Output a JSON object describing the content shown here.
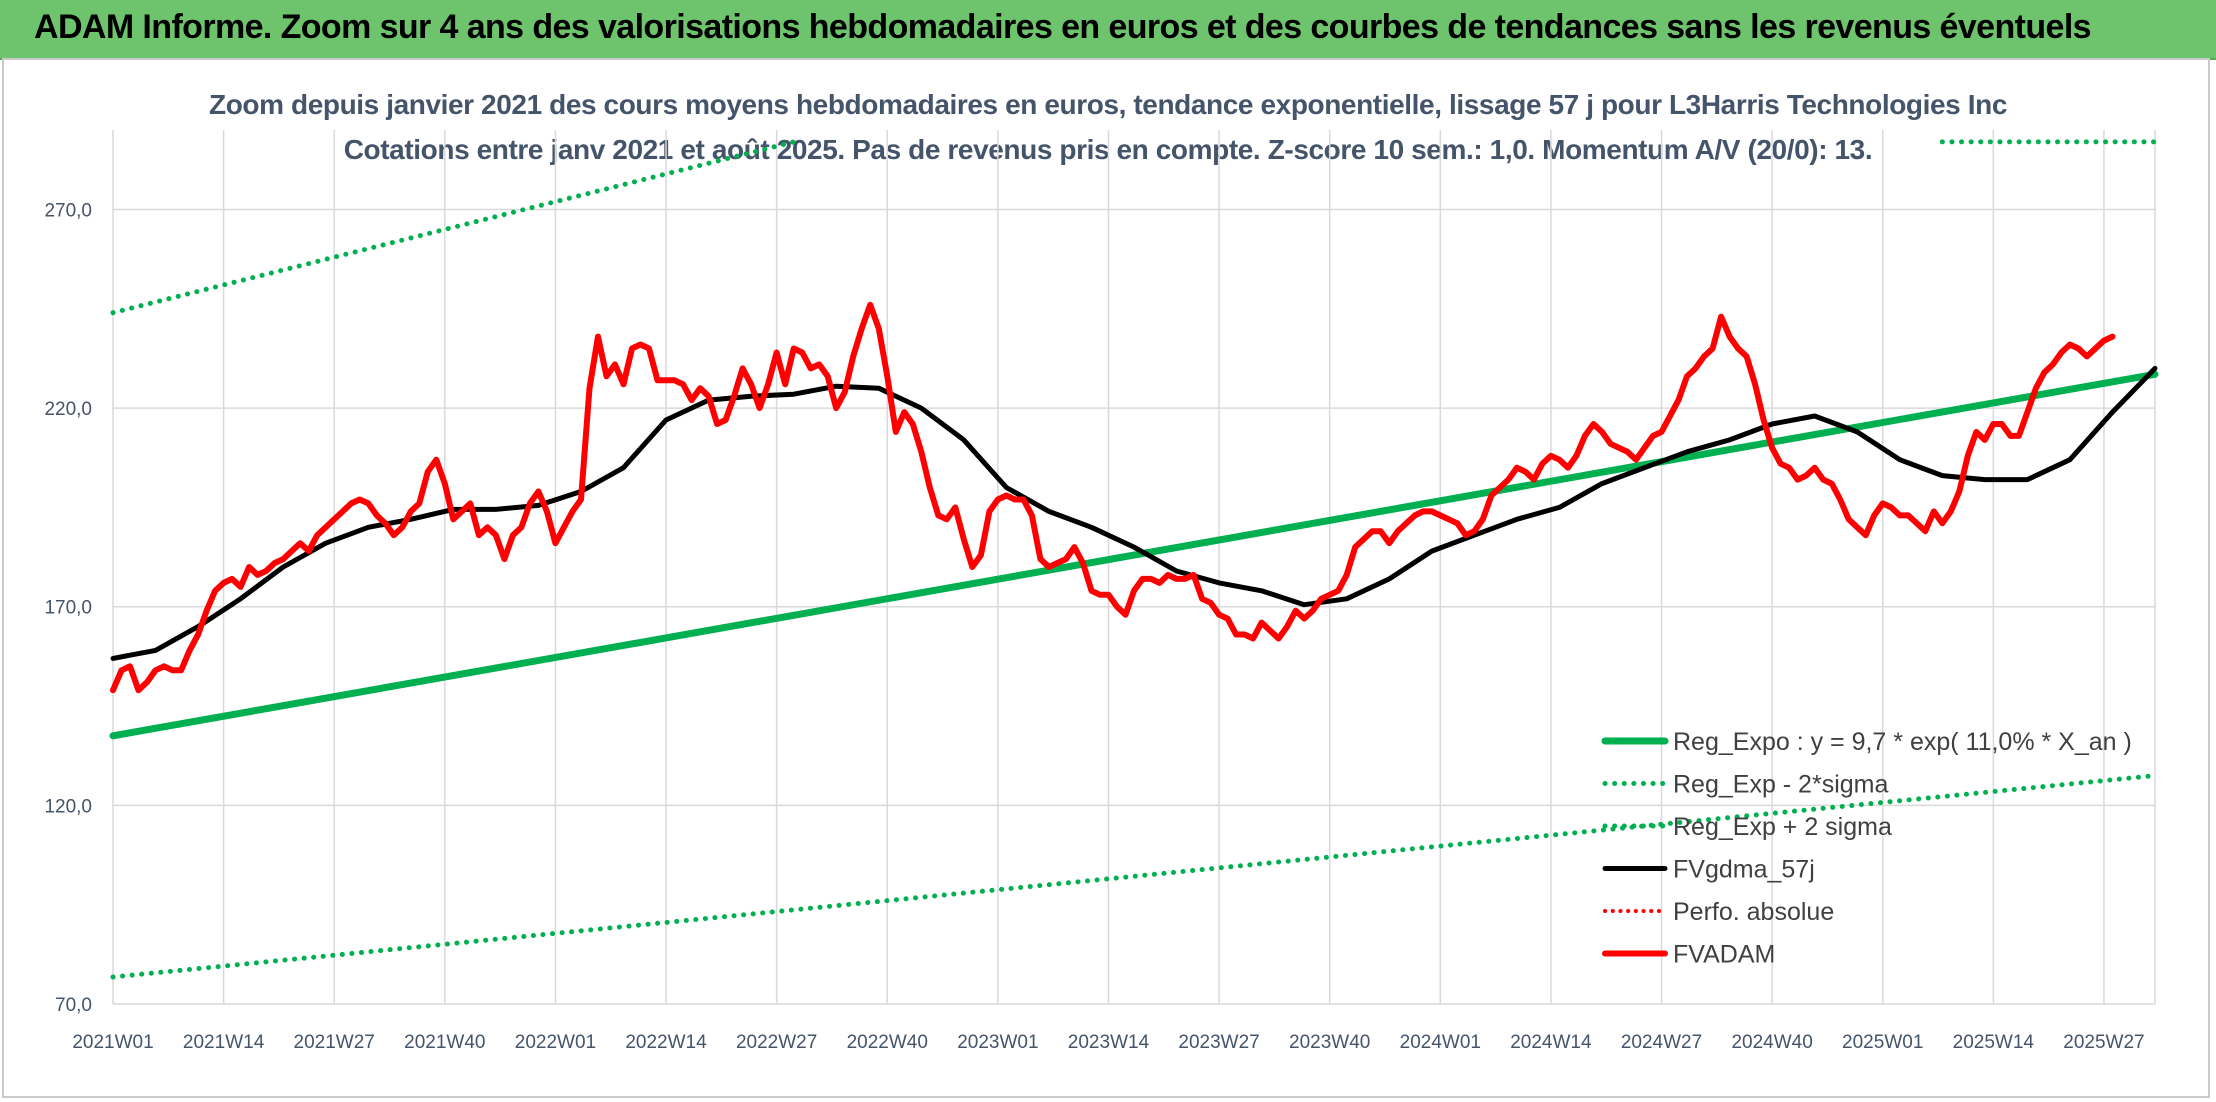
{
  "header": {
    "title": "ADAM Informe. Zoom sur 4 ans des valorisations hebdomadaires en euros et des courbes de tendances sans les revenus éventuels"
  },
  "chart_data": {
    "type": "line",
    "title_line1": "Zoom depuis janvier 2021 des cours moyens hebdomadaires en euros, tendance exponentielle, lissage 57 j pour L3Harris Technologies Inc",
    "title_line2": "Cotations entre janv 2021 et août 2025. Pas de revenus pris en compte. Z-score 10 sem.: 1,0. Momentum A/V (20/0): 13.",
    "xlabel": "",
    "ylabel": "",
    "ylim": [
      70,
      290
    ],
    "yticks": [
      "70,0",
      "120,0",
      "170,0",
      "220,0",
      "270,0"
    ],
    "ytick_values": [
      70,
      120,
      170,
      220,
      270
    ],
    "x_weeks": 240,
    "xticks": [
      "2021W01",
      "2021W14",
      "2021W27",
      "2021W40",
      "2022W01",
      "2022W14",
      "2022W27",
      "2022W40",
      "2023W01",
      "2023W14",
      "2023W27",
      "2023W40",
      "2024W01",
      "2024W14",
      "2024W27",
      "2024W40",
      "2025W01",
      "2025W14",
      "2025W27"
    ],
    "xtick_index": [
      0,
      13,
      26,
      39,
      52,
      65,
      78,
      91,
      104,
      117,
      130,
      143,
      156,
      169,
      182,
      195,
      208,
      221,
      234
    ],
    "grid": true,
    "legend_position": "bottom-right",
    "series": [
      {
        "name": "Reg_Expo : y = 9,7 * exp( 11,0% *  X_an )",
        "color": "#00b050",
        "style": "solid",
        "width": 7,
        "points": [
          [
            0,
            137.5
          ],
          [
            240,
            228.5
          ]
        ]
      },
      {
        "name": "Reg_Exp - 2*sigma",
        "color": "#00b050",
        "style": "dotted",
        "width": 5,
        "points": [
          [
            0,
            76.8
          ],
          [
            240,
            127.5
          ]
        ]
      },
      {
        "name": "Reg_Exp + 2 sigma",
        "color": "#00b050",
        "style": "dotted",
        "width": 5,
        "points": [
          [
            0,
            244.0
          ],
          [
            80,
            287.0
          ],
          [
            215,
            287.0
          ],
          [
            240,
            287.0
          ]
        ],
        "note_gap": [
          80,
          214
        ]
      },
      {
        "name": "FVgdma_57j",
        "color": "#000000",
        "style": "solid",
        "width": 5,
        "points": [
          [
            0,
            157
          ],
          [
            5,
            159
          ],
          [
            10,
            165
          ],
          [
            15,
            172
          ],
          [
            20,
            180
          ],
          [
            25,
            186
          ],
          [
            30,
            190
          ],
          [
            35,
            192
          ],
          [
            40,
            194.5
          ],
          [
            45,
            194.5
          ],
          [
            50,
            195.5
          ],
          [
            55,
            199
          ],
          [
            60,
            205
          ],
          [
            65,
            217
          ],
          [
            70,
            222
          ],
          [
            75,
            223
          ],
          [
            80,
            223.5
          ],
          [
            85,
            225.5
          ],
          [
            90,
            225
          ],
          [
            95,
            220
          ],
          [
            100,
            212
          ],
          [
            105,
            200
          ],
          [
            110,
            194
          ],
          [
            115,
            190
          ],
          [
            120,
            185
          ],
          [
            125,
            179
          ],
          [
            130,
            176
          ],
          [
            135,
            174
          ],
          [
            140,
            170.5
          ],
          [
            145,
            172
          ],
          [
            150,
            177
          ],
          [
            155,
            184
          ],
          [
            160,
            188
          ],
          [
            165,
            192
          ],
          [
            170,
            195
          ],
          [
            175,
            201
          ],
          [
            180,
            205
          ],
          [
            185,
            209
          ],
          [
            190,
            212
          ],
          [
            195,
            216
          ],
          [
            200,
            218
          ],
          [
            205,
            214
          ],
          [
            210,
            207
          ],
          [
            215,
            203
          ],
          [
            220,
            202
          ],
          [
            225,
            202
          ],
          [
            230,
            207
          ],
          [
            235,
            219
          ],
          [
            240,
            230
          ]
        ]
      },
      {
        "name": "Perfo. absolue",
        "color": "#ff0000",
        "style": "dotted",
        "width": 4,
        "points": []
      },
      {
        "name": "FVADAM",
        "color": "#ff0000",
        "style": "solid",
        "width": 6,
        "points": [
          [
            0,
            149
          ],
          [
            1,
            154
          ],
          [
            2,
            155
          ],
          [
            3,
            149
          ],
          [
            4,
            151
          ],
          [
            5,
            154
          ],
          [
            6,
            155
          ],
          [
            7,
            154
          ],
          [
            8,
            154
          ],
          [
            9,
            159
          ],
          [
            10,
            163
          ],
          [
            11,
            169
          ],
          [
            12,
            174
          ],
          [
            13,
            176
          ],
          [
            14,
            177
          ],
          [
            15,
            175
          ],
          [
            16,
            180
          ],
          [
            17,
            178
          ],
          [
            18,
            179
          ],
          [
            19,
            181
          ],
          [
            20,
            182
          ],
          [
            21,
            184
          ],
          [
            22,
            186
          ],
          [
            23,
            184
          ],
          [
            24,
            188
          ],
          [
            25,
            190
          ],
          [
            26,
            192
          ],
          [
            27,
            194
          ],
          [
            28,
            196
          ],
          [
            29,
            197
          ],
          [
            30,
            196
          ],
          [
            31,
            193
          ],
          [
            32,
            191
          ],
          [
            33,
            188
          ],
          [
            34,
            190
          ],
          [
            35,
            194
          ],
          [
            36,
            196
          ],
          [
            37,
            204
          ],
          [
            38,
            207
          ],
          [
            39,
            201
          ],
          [
            40,
            192
          ],
          [
            41,
            194
          ],
          [
            42,
            196
          ],
          [
            43,
            188
          ],
          [
            44,
            190
          ],
          [
            45,
            188
          ],
          [
            46,
            182
          ],
          [
            47,
            188
          ],
          [
            48,
            190
          ],
          [
            49,
            196
          ],
          [
            50,
            199
          ],
          [
            51,
            194
          ],
          [
            52,
            186
          ],
          [
            53,
            190
          ],
          [
            54,
            194
          ],
          [
            55,
            197
          ],
          [
            56,
            225
          ],
          [
            57,
            238
          ],
          [
            58,
            228
          ],
          [
            59,
            231
          ],
          [
            60,
            226
          ],
          [
            61,
            235
          ],
          [
            62,
            236
          ],
          [
            63,
            235
          ],
          [
            64,
            227
          ],
          [
            65,
            227
          ],
          [
            66,
            227
          ],
          [
            67,
            226
          ],
          [
            68,
            222
          ],
          [
            69,
            225
          ],
          [
            70,
            223
          ],
          [
            71,
            216
          ],
          [
            72,
            217
          ],
          [
            73,
            223
          ],
          [
            74,
            230
          ],
          [
            75,
            226
          ],
          [
            76,
            220
          ],
          [
            77,
            226
          ],
          [
            78,
            234
          ],
          [
            79,
            226
          ],
          [
            80,
            235
          ],
          [
            81,
            234
          ],
          [
            82,
            230
          ],
          [
            83,
            231
          ],
          [
            84,
            228
          ],
          [
            85,
            220
          ],
          [
            86,
            224
          ],
          [
            87,
            233
          ],
          [
            88,
            240
          ],
          [
            89,
            246
          ],
          [
            90,
            240
          ],
          [
            91,
            228
          ],
          [
            92,
            214
          ],
          [
            93,
            219
          ],
          [
            94,
            216
          ],
          [
            95,
            209
          ],
          [
            96,
            200
          ],
          [
            97,
            193
          ],
          [
            98,
            192
          ],
          [
            99,
            195
          ],
          [
            100,
            187
          ],
          [
            101,
            180
          ],
          [
            102,
            183
          ],
          [
            103,
            194
          ],
          [
            104,
            197
          ],
          [
            105,
            198
          ],
          [
            106,
            197
          ],
          [
            107,
            197
          ],
          [
            108,
            193
          ],
          [
            109,
            182
          ],
          [
            110,
            180
          ],
          [
            111,
            181
          ],
          [
            112,
            182
          ],
          [
            113,
            185
          ],
          [
            114,
            181
          ],
          [
            115,
            174
          ],
          [
            116,
            173
          ],
          [
            117,
            173
          ],
          [
            118,
            170
          ],
          [
            119,
            168
          ],
          [
            120,
            174
          ],
          [
            121,
            177
          ],
          [
            122,
            177
          ],
          [
            123,
            176
          ],
          [
            124,
            178
          ],
          [
            125,
            177
          ],
          [
            126,
            177
          ],
          [
            127,
            178
          ],
          [
            128,
            172
          ],
          [
            129,
            171
          ],
          [
            130,
            168
          ],
          [
            131,
            167
          ],
          [
            132,
            163
          ],
          [
            133,
            163
          ],
          [
            134,
            162
          ],
          [
            135,
            166
          ],
          [
            136,
            164
          ],
          [
            137,
            162
          ],
          [
            138,
            165
          ],
          [
            139,
            169
          ],
          [
            140,
            167
          ],
          [
            141,
            169
          ],
          [
            142,
            172
          ],
          [
            143,
            173
          ],
          [
            144,
            174
          ],
          [
            145,
            178
          ],
          [
            146,
            185
          ],
          [
            147,
            187
          ],
          [
            148,
            189
          ],
          [
            149,
            189
          ],
          [
            150,
            186
          ],
          [
            151,
            189
          ],
          [
            152,
            191
          ],
          [
            153,
            193
          ],
          [
            154,
            194
          ],
          [
            155,
            194
          ],
          [
            156,
            193
          ],
          [
            157,
            192
          ],
          [
            158,
            191
          ],
          [
            159,
            188
          ],
          [
            160,
            189
          ],
          [
            161,
            192
          ],
          [
            162,
            198
          ],
          [
            163,
            200
          ],
          [
            164,
            202
          ],
          [
            165,
            205
          ],
          [
            166,
            204
          ],
          [
            167,
            202
          ],
          [
            168,
            206
          ],
          [
            169,
            208
          ],
          [
            170,
            207
          ],
          [
            171,
            205
          ],
          [
            172,
            208
          ],
          [
            173,
            213
          ],
          [
            174,
            216
          ],
          [
            175,
            214
          ],
          [
            176,
            211
          ],
          [
            177,
            210
          ],
          [
            178,
            209
          ],
          [
            179,
            207
          ],
          [
            180,
            210
          ],
          [
            181,
            213
          ],
          [
            182,
            214
          ],
          [
            183,
            218
          ],
          [
            184,
            222
          ],
          [
            185,
            228
          ],
          [
            186,
            230
          ],
          [
            187,
            233
          ],
          [
            188,
            235
          ],
          [
            189,
            243
          ],
          [
            190,
            238
          ],
          [
            191,
            235
          ],
          [
            192,
            233
          ],
          [
            193,
            226
          ],
          [
            194,
            217
          ],
          [
            195,
            210
          ],
          [
            196,
            206
          ],
          [
            197,
            205
          ],
          [
            198,
            202
          ],
          [
            199,
            203
          ],
          [
            200,
            205
          ],
          [
            201,
            202
          ],
          [
            202,
            201
          ],
          [
            203,
            197
          ],
          [
            204,
            192
          ],
          [
            205,
            190
          ],
          [
            206,
            188
          ],
          [
            207,
            193
          ],
          [
            208,
            196
          ],
          [
            209,
            195
          ],
          [
            210,
            193
          ],
          [
            211,
            193
          ],
          [
            212,
            191
          ],
          [
            213,
            189
          ],
          [
            214,
            194
          ],
          [
            215,
            191
          ],
          [
            216,
            194
          ],
          [
            217,
            199
          ],
          [
            218,
            208
          ],
          [
            219,
            214
          ],
          [
            220,
            212
          ],
          [
            221,
            216
          ],
          [
            222,
            216
          ],
          [
            223,
            213
          ],
          [
            224,
            213
          ],
          [
            225,
            219
          ],
          [
            226,
            225
          ],
          [
            227,
            229
          ],
          [
            228,
            231
          ],
          [
            229,
            234
          ],
          [
            230,
            236
          ],
          [
            231,
            235
          ],
          [
            232,
            233
          ],
          [
            233,
            235
          ],
          [
            234,
            237
          ],
          [
            235,
            238
          ]
        ]
      }
    ]
  }
}
